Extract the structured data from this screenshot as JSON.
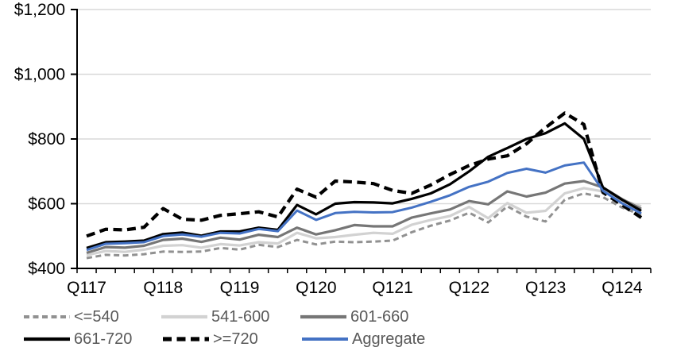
{
  "chart_data": {
    "type": "line",
    "title": "",
    "xlabel": "",
    "ylabel": "",
    "ylim": [
      400,
      1200
    ],
    "ytick_step": 200,
    "ytick_labels": [
      "$400",
      "$600",
      "$800",
      "$1,000",
      "$1,200"
    ],
    "grid": "horizontal-only",
    "grid_color": "#d9d9d9",
    "axis_color": "#000000",
    "legend_position": "bottom",
    "legend_text_color": "#595959",
    "categories": [
      "Q117",
      "Q217",
      "Q317",
      "Q417",
      "Q118",
      "Q218",
      "Q318",
      "Q418",
      "Q119",
      "Q219",
      "Q319",
      "Q419",
      "Q120",
      "Q220",
      "Q320",
      "Q420",
      "Q121",
      "Q221",
      "Q321",
      "Q421",
      "Q122",
      "Q222",
      "Q322",
      "Q422",
      "Q123",
      "Q223",
      "Q323",
      "Q423",
      "Q124",
      "Q224"
    ],
    "x_labels_shown": [
      "Q117",
      "Q118",
      "Q119",
      "Q120",
      "Q121",
      "Q122",
      "Q123",
      "Q124"
    ],
    "x_label_indices": [
      0,
      4,
      8,
      12,
      16,
      20,
      24,
      28
    ],
    "series": [
      {
        "name": "<=540",
        "color": "#919191",
        "dash": [
          7,
          4.5
        ],
        "width": 3,
        "values": [
          432,
          442,
          440,
          444,
          452,
          451,
          452,
          463,
          458,
          473,
          466,
          488,
          474,
          483,
          481,
          483,
          486,
          512,
          532,
          548,
          572,
          542,
          592,
          560,
          545,
          612,
          632,
          620,
          588,
          566
        ]
      },
      {
        "name": "541-600",
        "color": "#d2d2d2",
        "dash": null,
        "width": 3.2,
        "values": [
          441,
          454,
          451,
          458,
          470,
          472,
          464,
          475,
          471,
          481,
          477,
          510,
          493,
          497,
          504,
          510,
          507,
          535,
          550,
          562,
          590,
          555,
          602,
          572,
          578,
          632,
          648,
          638,
          610,
          592
        ]
      },
      {
        "name": "601-660",
        "color": "#767676",
        "dash": null,
        "width": 3.2,
        "values": [
          448,
          466,
          464,
          470,
          488,
          492,
          482,
          495,
          489,
          504,
          497,
          526,
          505,
          518,
          534,
          530,
          530,
          557,
          570,
          582,
          608,
          598,
          638,
          622,
          634,
          662,
          670,
          650,
          614,
          584
        ]
      },
      {
        "name": "661-720",
        "color": "#000000",
        "dash": null,
        "width": 3.2,
        "values": [
          463,
          481,
          483,
          486,
          506,
          511,
          501,
          514,
          514,
          526,
          519,
          596,
          567,
          600,
          605,
          604,
          601,
          615,
          632,
          660,
          700,
          745,
          772,
          800,
          818,
          848,
          800,
          650,
          612,
          578
        ]
      },
      {
        "name": ">=720",
        "color": "#000000",
        "dash": [
          11,
          6.5
        ],
        "width": 4.2,
        "values": [
          500,
          521,
          519,
          527,
          585,
          552,
          549,
          564,
          569,
          575,
          559,
          645,
          620,
          670,
          667,
          662,
          641,
          632,
          658,
          690,
          718,
          738,
          748,
          785,
          835,
          880,
          845,
          635,
          596,
          557
        ]
      },
      {
        "name": "Aggregate",
        "color": "#4472c4",
        "dash": null,
        "width": 3,
        "values": [
          457,
          476,
          478,
          481,
          500,
          505,
          498,
          510,
          508,
          522,
          515,
          579,
          550,
          571,
          575,
          573,
          574,
          588,
          606,
          626,
          652,
          668,
          695,
          708,
          696,
          718,
          727,
          640,
          601,
          570
        ]
      }
    ],
    "legend_rows": [
      {
        "items": [
          "<=540",
          "541-600",
          "601-660"
        ],
        "item_x": [
          30,
          203,
          378
        ]
      },
      {
        "items": [
          "661-720",
          ">=720",
          "Aggregate"
        ],
        "item_x": [
          30,
          205,
          380
        ]
      }
    ]
  }
}
